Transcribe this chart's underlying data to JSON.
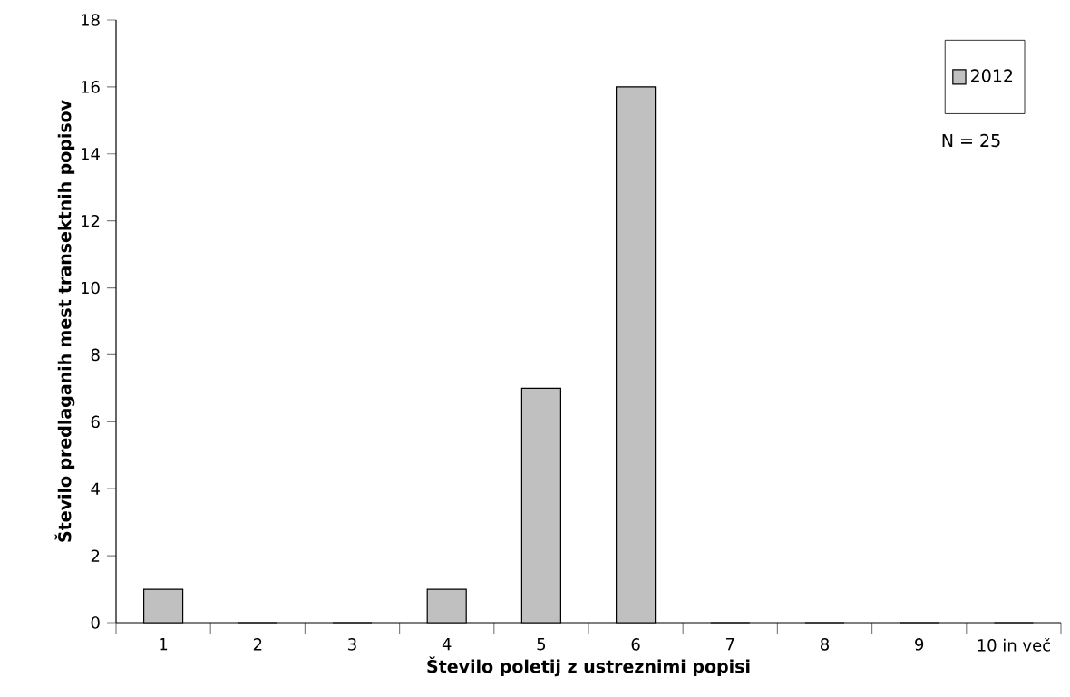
{
  "chart_data": {
    "type": "bar",
    "xlabel": "Število poletij z ustreznimi popisi",
    "ylabel": "Število predlaganih mest transektnih popisov",
    "categories": [
      "1",
      "2",
      "3",
      "4",
      "5",
      "6",
      "7",
      "8",
      "9",
      "10 in več"
    ],
    "series": [
      {
        "name": "2012",
        "color": "#c0c0c0",
        "values": [
          1,
          0,
          0,
          1,
          7,
          16,
          0,
          0,
          0,
          0
        ]
      }
    ],
    "ylim": [
      0,
      18
    ],
    "yticks": [
      0,
      2,
      4,
      6,
      8,
      10,
      12,
      14,
      16,
      18
    ],
    "grid": false,
    "legend": "top right",
    "annotations": [
      "N = 25"
    ]
  }
}
